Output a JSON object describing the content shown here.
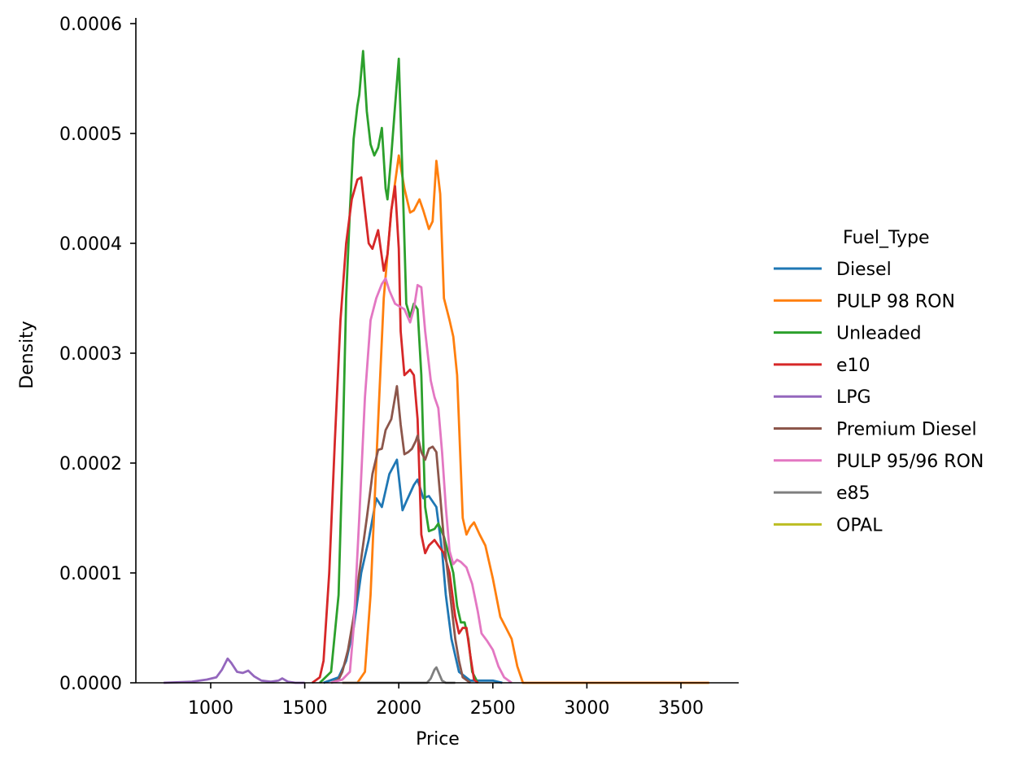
{
  "chart_data": {
    "type": "line",
    "title": "",
    "xlabel": "Price",
    "ylabel": "Density",
    "xlim": [
      650,
      3800
    ],
    "ylim": [
      0,
      0.0006
    ],
    "x_ticks": [
      1000,
      1500,
      2000,
      2500,
      3000,
      3500
    ],
    "x_tick_labels": [
      "1000",
      "1500",
      "2000",
      "2500",
      "3000",
      "3500"
    ],
    "y_ticks": [
      0,
      0.0001,
      0.0002,
      0.0003,
      0.0004,
      0.0005,
      0.0006
    ],
    "y_tick_labels": [
      "0.0000",
      "0.0001",
      "0.0002",
      "0.0003",
      "0.0004",
      "0.0005",
      "0.0006"
    ],
    "grid": false,
    "legend": {
      "title": "Fuel_Type",
      "placement": "right-outside"
    },
    "series": [
      {
        "name": "Diesel",
        "color": "#1f77b4",
        "points": [
          [
            1600,
            0
          ],
          [
            1680,
            5e-06
          ],
          [
            1720,
            2e-05
          ],
          [
            1760,
            5e-05
          ],
          [
            1800,
            0.0001
          ],
          [
            1840,
            0.00013
          ],
          [
            1880,
            0.000168
          ],
          [
            1910,
            0.00016
          ],
          [
            1950,
            0.00019
          ],
          [
            1990,
            0.000203
          ],
          [
            2020,
            0.000157
          ],
          [
            2040,
            0.000165
          ],
          [
            2080,
            0.00018
          ],
          [
            2100,
            0.000185
          ],
          [
            2130,
            0.000168
          ],
          [
            2160,
            0.00017
          ],
          [
            2200,
            0.00016
          ],
          [
            2230,
            0.00012
          ],
          [
            2250,
            8e-05
          ],
          [
            2280,
            4e-05
          ],
          [
            2320,
            1e-05
          ],
          [
            2380,
            2e-06
          ],
          [
            2500,
            2e-06
          ],
          [
            2550,
            0
          ]
        ]
      },
      {
        "name": "PULP 98 RON",
        "color": "#ff7f0e",
        "points": [
          [
            1700,
            0
          ],
          [
            1780,
            0
          ],
          [
            1820,
            1e-05
          ],
          [
            1850,
            8e-05
          ],
          [
            1880,
            0.0002
          ],
          [
            1920,
            0.00035
          ],
          [
            1960,
            0.00043
          ],
          [
            2000,
            0.00048
          ],
          [
            2030,
            0.00045
          ],
          [
            2060,
            0.000428
          ],
          [
            2080,
            0.00043
          ],
          [
            2110,
            0.00044
          ],
          [
            2130,
            0.00043
          ],
          [
            2160,
            0.000413
          ],
          [
            2180,
            0.00042
          ],
          [
            2200,
            0.000475
          ],
          [
            2220,
            0.000445
          ],
          [
            2240,
            0.00035
          ],
          [
            2270,
            0.00033
          ],
          [
            2290,
            0.000315
          ],
          [
            2310,
            0.00028
          ],
          [
            2340,
            0.00015
          ],
          [
            2360,
            0.000135
          ],
          [
            2380,
            0.000142
          ],
          [
            2400,
            0.000146
          ],
          [
            2430,
            0.000135
          ],
          [
            2460,
            0.000125
          ],
          [
            2500,
            9.5e-05
          ],
          [
            2540,
            6e-05
          ],
          [
            2570,
            5e-05
          ],
          [
            2600,
            4e-05
          ],
          [
            2630,
            1.5e-05
          ],
          [
            2660,
            0
          ],
          [
            3650,
            0
          ]
        ]
      },
      {
        "name": "Unleaded",
        "color": "#2ca02c",
        "points": [
          [
            1580,
            0
          ],
          [
            1640,
            1e-05
          ],
          [
            1680,
            8e-05
          ],
          [
            1700,
            0.0002
          ],
          [
            1720,
            0.00035
          ],
          [
            1740,
            0.00043
          ],
          [
            1760,
            0.000495
          ],
          [
            1780,
            0.000525
          ],
          [
            1790,
            0.000535
          ],
          [
            1810,
            0.000575
          ],
          [
            1830,
            0.00052
          ],
          [
            1850,
            0.00049
          ],
          [
            1870,
            0.00048
          ],
          [
            1890,
            0.000487
          ],
          [
            1910,
            0.000505
          ],
          [
            1930,
            0.00045
          ],
          [
            1940,
            0.00044
          ],
          [
            1960,
            0.00048
          ],
          [
            1980,
            0.000525
          ],
          [
            2000,
            0.000568
          ],
          [
            2020,
            0.00046
          ],
          [
            2040,
            0.000345
          ],
          [
            2060,
            0.000333
          ],
          [
            2080,
            0.000345
          ],
          [
            2100,
            0.00034
          ],
          [
            2120,
            0.00028
          ],
          [
            2140,
            0.00016
          ],
          [
            2160,
            0.000138
          ],
          [
            2190,
            0.00014
          ],
          [
            2210,
            0.000145
          ],
          [
            2240,
            0.000133
          ],
          [
            2260,
            0.00012
          ],
          [
            2290,
            0.0001
          ],
          [
            2310,
            7e-05
          ],
          [
            2330,
            5.5e-05
          ],
          [
            2350,
            5.5e-05
          ],
          [
            2370,
            4e-05
          ],
          [
            2390,
            1e-05
          ],
          [
            2420,
            0
          ]
        ]
      },
      {
        "name": "e10",
        "color": "#d62728",
        "points": [
          [
            1540,
            0
          ],
          [
            1580,
            5e-06
          ],
          [
            1600,
            2e-05
          ],
          [
            1630,
            0.0001
          ],
          [
            1660,
            0.00022
          ],
          [
            1690,
            0.00033
          ],
          [
            1720,
            0.0004
          ],
          [
            1750,
            0.00044
          ],
          [
            1780,
            0.000458
          ],
          [
            1800,
            0.00046
          ],
          [
            1820,
            0.00043
          ],
          [
            1840,
            0.0004
          ],
          [
            1860,
            0.000395
          ],
          [
            1890,
            0.000412
          ],
          [
            1920,
            0.000375
          ],
          [
            1940,
            0.00039
          ],
          [
            1960,
            0.00043
          ],
          [
            1980,
            0.000452
          ],
          [
            2000,
            0.000395
          ],
          [
            2010,
            0.00032
          ],
          [
            2030,
            0.00028
          ],
          [
            2060,
            0.000285
          ],
          [
            2080,
            0.00028
          ],
          [
            2100,
            0.00024
          ],
          [
            2120,
            0.000135
          ],
          [
            2140,
            0.000118
          ],
          [
            2160,
            0.000125
          ],
          [
            2190,
            0.00013
          ],
          [
            2210,
            0.000125
          ],
          [
            2240,
            0.000118
          ],
          [
            2270,
            0.0001
          ],
          [
            2300,
            6e-05
          ],
          [
            2320,
            4.5e-05
          ],
          [
            2340,
            5e-05
          ],
          [
            2360,
            5e-05
          ],
          [
            2380,
            2.5e-05
          ],
          [
            2400,
            3e-06
          ],
          [
            2420,
            0
          ]
        ]
      },
      {
        "name": "LPG",
        "color": "#9467bd",
        "points": [
          [
            750,
            0
          ],
          [
            900,
            1e-06
          ],
          [
            980,
            3e-06
          ],
          [
            1030,
            5e-06
          ],
          [
            1060,
            1.2e-05
          ],
          [
            1090,
            2.2e-05
          ],
          [
            1110,
            1.8e-05
          ],
          [
            1140,
            1e-05
          ],
          [
            1170,
            9e-06
          ],
          [
            1200,
            1.1e-05
          ],
          [
            1230,
            6e-06
          ],
          [
            1270,
            2e-06
          ],
          [
            1320,
            1e-06
          ],
          [
            1360,
            2e-06
          ],
          [
            1380,
            4e-06
          ],
          [
            1410,
            1e-06
          ],
          [
            1450,
            0
          ],
          [
            1500,
            0
          ]
        ]
      },
      {
        "name": "Premium Diesel",
        "color": "#8c564b",
        "points": [
          [
            1640,
            0
          ],
          [
            1680,
            3e-06
          ],
          [
            1700,
            1e-05
          ],
          [
            1730,
            3e-05
          ],
          [
            1760,
            6e-05
          ],
          [
            1790,
            0.0001
          ],
          [
            1830,
            0.00015
          ],
          [
            1860,
            0.00019
          ],
          [
            1890,
            0.000212
          ],
          [
            1910,
            0.000213
          ],
          [
            1930,
            0.00023
          ],
          [
            1960,
            0.00024
          ],
          [
            1990,
            0.00027
          ],
          [
            2010,
            0.000235
          ],
          [
            2030,
            0.000208
          ],
          [
            2050,
            0.00021
          ],
          [
            2070,
            0.000213
          ],
          [
            2090,
            0.00022
          ],
          [
            2100,
            0.000225
          ],
          [
            2120,
            0.00021
          ],
          [
            2140,
            0.000203
          ],
          [
            2160,
            0.000213
          ],
          [
            2180,
            0.000215
          ],
          [
            2200,
            0.00021
          ],
          [
            2220,
            0.00017
          ],
          [
            2240,
            0.00013
          ],
          [
            2260,
            0.0001
          ],
          [
            2280,
            7e-05
          ],
          [
            2300,
            4e-05
          ],
          [
            2320,
            2e-05
          ],
          [
            2340,
            5e-06
          ],
          [
            2380,
            0
          ]
        ]
      },
      {
        "name": "PULP 95/96 RON",
        "color": "#e377c2",
        "points": [
          [
            1640,
            0
          ],
          [
            1700,
            3e-06
          ],
          [
            1740,
            1e-05
          ],
          [
            1760,
            5e-05
          ],
          [
            1790,
            0.00015
          ],
          [
            1820,
            0.00026
          ],
          [
            1850,
            0.00033
          ],
          [
            1880,
            0.00035
          ],
          [
            1910,
            0.000363
          ],
          [
            1930,
            0.000368
          ],
          [
            1950,
            0.000357
          ],
          [
            1980,
            0.000345
          ],
          [
            2000,
            0.000343
          ],
          [
            2030,
            0.00034
          ],
          [
            2060,
            0.000328
          ],
          [
            2080,
            0.00034
          ],
          [
            2100,
            0.000362
          ],
          [
            2120,
            0.00036
          ],
          [
            2140,
            0.00032
          ],
          [
            2170,
            0.000275
          ],
          [
            2190,
            0.00026
          ],
          [
            2210,
            0.00025
          ],
          [
            2230,
            0.00021
          ],
          [
            2250,
            0.00016
          ],
          [
            2270,
            0.00012
          ],
          [
            2290,
            0.000108
          ],
          [
            2310,
            0.000112
          ],
          [
            2330,
            0.00011
          ],
          [
            2360,
            0.000105
          ],
          [
            2390,
            9e-05
          ],
          [
            2420,
            6.5e-05
          ],
          [
            2440,
            4.5e-05
          ],
          [
            2470,
            3.8e-05
          ],
          [
            2500,
            3e-05
          ],
          [
            2530,
            1.5e-05
          ],
          [
            2560,
            5e-06
          ],
          [
            2600,
            0
          ]
        ]
      },
      {
        "name": "e85",
        "color": "#7f7f7f",
        "points": [
          [
            1700,
            0
          ],
          [
            2150,
            0
          ],
          [
            2170,
            4e-06
          ],
          [
            2190,
            1.2e-05
          ],
          [
            2200,
            1.4e-05
          ],
          [
            2215,
            8e-06
          ],
          [
            2230,
            2e-06
          ],
          [
            2250,
            0
          ],
          [
            2300,
            0
          ]
        ]
      },
      {
        "name": "OPAL",
        "color": "#bcbd22",
        "points": []
      }
    ]
  }
}
